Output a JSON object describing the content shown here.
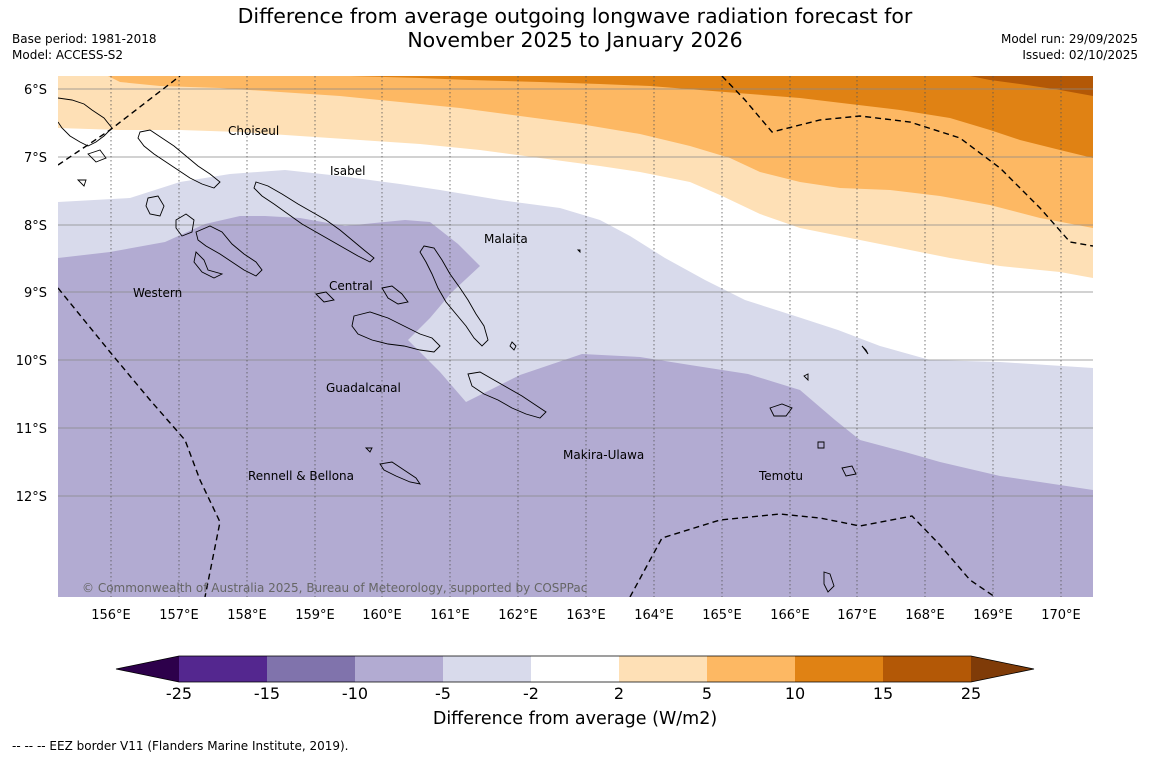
{
  "header": {
    "title_line1": "Difference from average outgoing longwave radiation forecast for",
    "title_line2": "November 2025 to January 2026",
    "base_period": "Base period: 1981-2018",
    "model": "Model: ACCESS-S2",
    "model_run": "Model run: 29/09/2025",
    "issued": "Issued: 02/10/2025"
  },
  "map": {
    "lat_labels": [
      "6°S",
      "7°S",
      "8°S",
      "9°S",
      "10°S",
      "11°S",
      "12°S"
    ],
    "lon_labels": [
      "156°E",
      "157°E",
      "158°E",
      "159°E",
      "160°E",
      "161°E",
      "162°E",
      "163°E",
      "164°E",
      "165°E",
      "166°E",
      "167°E",
      "168°E",
      "169°E",
      "170°E"
    ],
    "regions": [
      {
        "id": "choiseul",
        "name": "Choiseul"
      },
      {
        "id": "isabel",
        "name": "Isabel"
      },
      {
        "id": "malaita",
        "name": "Malaita"
      },
      {
        "id": "western",
        "name": "Western"
      },
      {
        "id": "central",
        "name": "Central"
      },
      {
        "id": "guadalcanal",
        "name": "Guadalcanal"
      },
      {
        "id": "makira",
        "name": "Makira-Ulawa"
      },
      {
        "id": "rennell",
        "name": "Rennell & Bellona"
      },
      {
        "id": "temotu",
        "name": "Temotu"
      }
    ],
    "copyright": "© Commonwealth of Australia 2025, Bureau of Meteorology, supported by COSPPac"
  },
  "colorbar": {
    "bins": [
      {
        "color": "#54278f"
      },
      {
        "color": "#8073ac"
      },
      {
        "color": "#b2abd2"
      },
      {
        "color": "#d8daeb"
      },
      {
        "color": "#ffffff"
      },
      {
        "color": "#fee0b6"
      },
      {
        "color": "#fdb863"
      },
      {
        "color": "#e08214"
      },
      {
        "color": "#b35806"
      }
    ],
    "extend_low_color": "#2d004b",
    "extend_high_color": "#7f3b08",
    "tick_labels": [
      "-25",
      "-15",
      "-10",
      "-5",
      "-2",
      "2",
      "5",
      "10",
      "15",
      "25"
    ],
    "title": "Difference from average (W/m2)"
  },
  "footnote": "--  --  -- EEZ border V11 (Flanders Marine Institute, 2019)."
}
